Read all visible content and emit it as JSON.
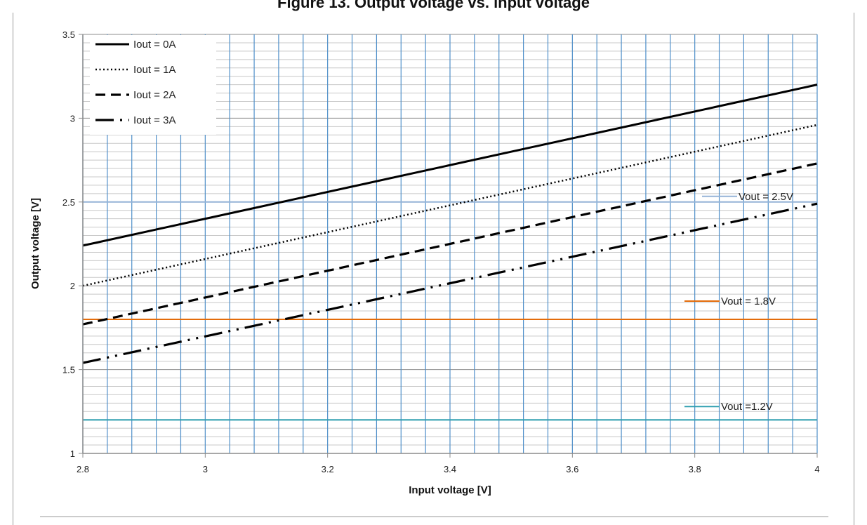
{
  "page": {
    "title": "Figure 13. Output voltage vs. input voltage"
  },
  "chart_data": {
    "type": "line",
    "title": "",
    "xlabel": "Input voltage [V]",
    "ylabel": "Output voltage [V]",
    "xlim": [
      2.8,
      4
    ],
    "ylim": [
      1,
      3.5
    ],
    "x_ticks": [
      "2.8",
      "3",
      "3.2",
      "3.4",
      "3.6",
      "3.8",
      "4"
    ],
    "y_ticks": [
      "1",
      "1.5",
      "2",
      "2.5",
      "3",
      "3.5"
    ],
    "grid": true,
    "legend_position": "top-left",
    "series": [
      {
        "name": "Iout = 0A",
        "style": "solid",
        "color": "#000000",
        "x": [
          2.8,
          4.0
        ],
        "y": [
          2.24,
          3.2
        ]
      },
      {
        "name": "Iout = 1A",
        "style": "dotted",
        "color": "#000000",
        "x": [
          2.8,
          4.0
        ],
        "y": [
          2.0,
          2.96
        ]
      },
      {
        "name": "Iout = 2A",
        "style": "dashed",
        "color": "#000000",
        "x": [
          2.8,
          4.0
        ],
        "y": [
          1.77,
          2.73
        ]
      },
      {
        "name": "Iout = 3A",
        "style": "dash-dot-dot",
        "color": "#000000",
        "x": [
          2.8,
          4.0
        ],
        "y": [
          1.54,
          2.49
        ]
      }
    ],
    "reference_lines": [
      {
        "label": "Vout = 2.5V",
        "y": 2.5,
        "color": "#95b3d7"
      },
      {
        "label": "Vout = 1.8V",
        "y": 1.8,
        "color": "#e46c0a"
      },
      {
        "label": "Vout =1.2V",
        "y": 1.2,
        "color": "#31a0b0"
      }
    ]
  }
}
